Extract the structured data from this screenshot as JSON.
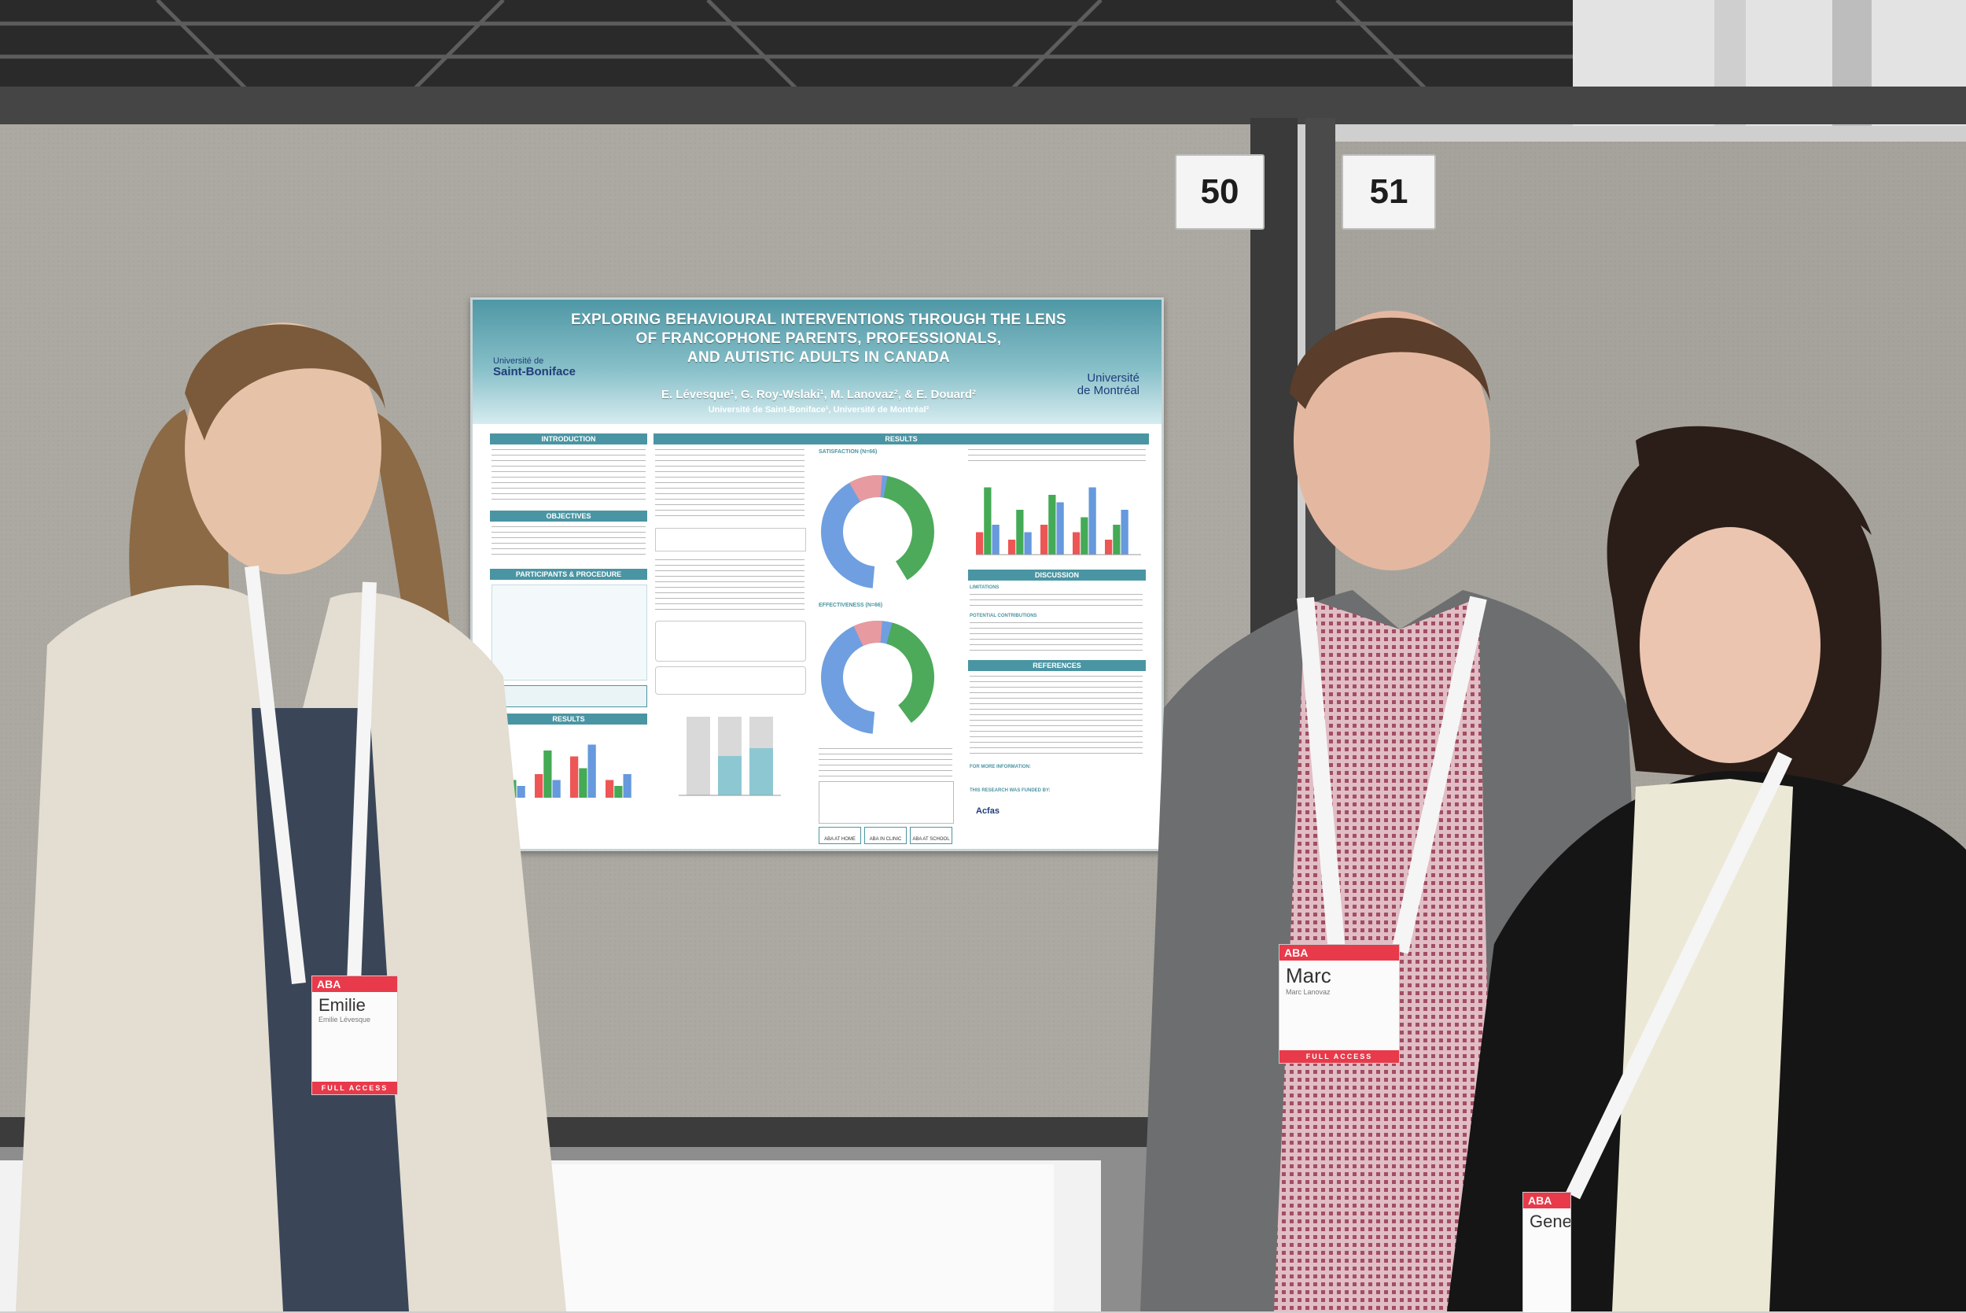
{
  "booths": {
    "left_number": "50",
    "right_number": "51"
  },
  "poster": {
    "title_line_1": "EXPLORING BEHAVIOURAL INTERVENTIONS THROUGH THE LENS",
    "title_line_2": "OF FRANCOPHONE PARENTS, PROFESSIONALS,",
    "title_line_3": "AND AUTISTIC ADULTS IN CANADA",
    "authors": "E. Lévesque¹, G. Roy-Wslaki¹, M. Lanovaz², & E. Douard²",
    "affiliation": "Université de Saint-Boniface¹, Université de Montréal²",
    "logo_left_small": "Université de",
    "logo_left_main": "Saint-Boniface",
    "logo_right_line_1": "Université",
    "logo_right_line_2": "de Montréal",
    "sections": {
      "introduction": "INTRODUCTION",
      "objectives": "OBJECTIVES",
      "participants": "PARTICIPANTS & PROCEDURE",
      "results_left": "RESULTS",
      "results_top": "RESULTS",
      "discussion": "DISCUSSION",
      "references": "REFERENCES"
    },
    "labels": {
      "satisfaction": "SATISFACTION (N=66)",
      "effectiveness": "EFFECTIVENESS (N=66)",
      "limitations": "LIMITATIONS",
      "contributions": "POTENTIAL CONTRIBUTIONS",
      "more_info": "FOR MORE INFORMATION:",
      "funded": "THIS RESEARCH WAS FUNDED BY:",
      "acfas": "Acfas",
      "aba_home": "ABA AT HOME",
      "aba_clinic": "ABA IN CLINIC",
      "aba_school": "ABA AT SCHOOL"
    }
  },
  "badges": {
    "left_name": "Emilie",
    "left_sub": "Emilie Lévesque",
    "middle_name": "Marc",
    "middle_sub": "Marc Lanovaz",
    "right_name": "Gene",
    "full_access": "FULL ACCESS",
    "aba": "ABA"
  },
  "colors": {
    "poster_header": "#4f97a5",
    "badge_red": "#e83a4a",
    "panel_gray": "#a9a69f"
  }
}
